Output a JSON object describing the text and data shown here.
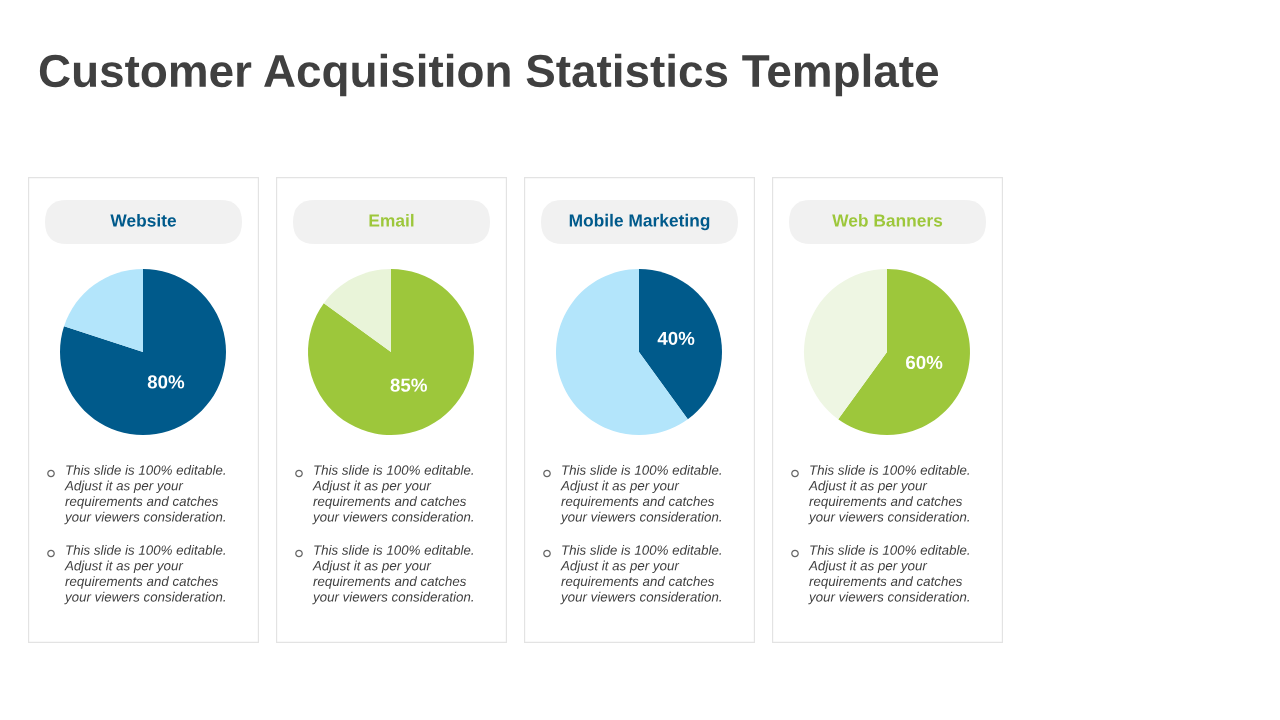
{
  "chart_data": [
    {
      "type": "other",
      "title": "Customer Acquisition Statistics Template"
    },
    {
      "type": "pie",
      "title": "Website",
      "categories": [
        null,
        null
      ],
      "values": [
        80,
        20
      ],
      "colors": [
        "#005a8b",
        "#b3e5fb"
      ],
      "value_labels": [
        "80%",
        null
      ],
      "annotations": [
        "This slide is 100% editable.\nAdjust it as per your\nrequirements and catches\nyour viewers consideration.",
        "This slide is 100% editable.\nAdjust it as per your\nrequirements and catches\nyour viewers consideration."
      ]
    },
    {
      "type": "pie",
      "title": "Email",
      "categories": [
        null,
        null
      ],
      "values": [
        85,
        15
      ],
      "colors": [
        "#9dc73b",
        "#e9f4d9"
      ],
      "value_labels": [
        "85%",
        null
      ],
      "annotations": [
        "This slide is 100% editable.\nAdjust it as per your\nrequirements and catches\nyour viewers consideration.",
        "This slide is 100% editable.\nAdjust it as per your\nrequirements and catches\nyour viewers consideration."
      ]
    },
    {
      "type": "pie",
      "title": "Mobile Marketing",
      "categories": [
        null,
        null
      ],
      "values": [
        40,
        60
      ],
      "colors": [
        "#005a8b",
        "#b3e5fb"
      ],
      "value_labels": [
        "40%",
        null
      ],
      "annotations": [
        "This slide is 100% editable.\nAdjust it as per your\nrequirements and catches\nyour viewers consideration.",
        "This slide is 100% editable.\nAdjust it as per your\nrequirements and catches\nyour viewers consideration."
      ]
    },
    {
      "type": "pie",
      "title": "Web Banners",
      "categories": [
        null,
        null
      ],
      "values": [
        60,
        40
      ],
      "colors": [
        "#9dc73b",
        "#eef6e3"
      ],
      "value_labels": [
        "60%",
        null
      ],
      "annotations": [
        "This slide is 100% editable.\nAdjust it as per your\nrequirements and catches\nyour viewers consideration.",
        "This slide is 100% editable.\nAdjust it as per your\nrequirements and catches\nyour viewers consideration."
      ]
    }
  ]
}
